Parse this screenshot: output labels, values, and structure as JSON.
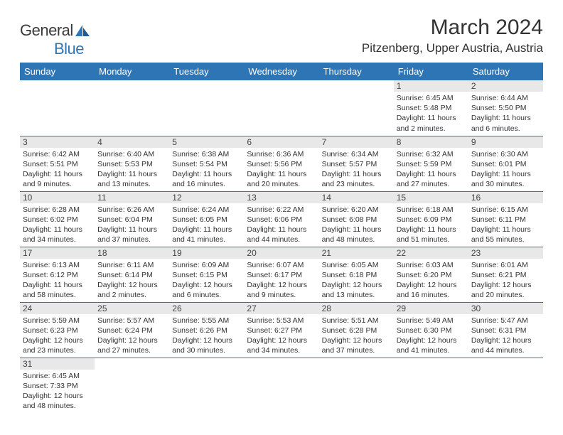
{
  "logo": {
    "text_general": "General",
    "text_blue": "Blue"
  },
  "header": {
    "month_title": "March 2024",
    "location": "Pitzenberg, Upper Austria, Austria"
  },
  "colors": {
    "header_bg": "#2e75b6",
    "header_text": "#ffffff",
    "daynum_bg": "#e8e8e8",
    "border": "#2e75b6",
    "text": "#333333"
  },
  "day_headers": [
    "Sunday",
    "Monday",
    "Tuesday",
    "Wednesday",
    "Thursday",
    "Friday",
    "Saturday"
  ],
  "weeks": [
    [
      {
        "day": "",
        "lines": []
      },
      {
        "day": "",
        "lines": []
      },
      {
        "day": "",
        "lines": []
      },
      {
        "day": "",
        "lines": []
      },
      {
        "day": "",
        "lines": []
      },
      {
        "day": "1",
        "lines": [
          "Sunrise: 6:45 AM",
          "Sunset: 5:48 PM",
          "Daylight: 11 hours and 2 minutes."
        ]
      },
      {
        "day": "2",
        "lines": [
          "Sunrise: 6:44 AM",
          "Sunset: 5:50 PM",
          "Daylight: 11 hours and 6 minutes."
        ]
      }
    ],
    [
      {
        "day": "3",
        "lines": [
          "Sunrise: 6:42 AM",
          "Sunset: 5:51 PM",
          "Daylight: 11 hours and 9 minutes."
        ]
      },
      {
        "day": "4",
        "lines": [
          "Sunrise: 6:40 AM",
          "Sunset: 5:53 PM",
          "Daylight: 11 hours and 13 minutes."
        ]
      },
      {
        "day": "5",
        "lines": [
          "Sunrise: 6:38 AM",
          "Sunset: 5:54 PM",
          "Daylight: 11 hours and 16 minutes."
        ]
      },
      {
        "day": "6",
        "lines": [
          "Sunrise: 6:36 AM",
          "Sunset: 5:56 PM",
          "Daylight: 11 hours and 20 minutes."
        ]
      },
      {
        "day": "7",
        "lines": [
          "Sunrise: 6:34 AM",
          "Sunset: 5:57 PM",
          "Daylight: 11 hours and 23 minutes."
        ]
      },
      {
        "day": "8",
        "lines": [
          "Sunrise: 6:32 AM",
          "Sunset: 5:59 PM",
          "Daylight: 11 hours and 27 minutes."
        ]
      },
      {
        "day": "9",
        "lines": [
          "Sunrise: 6:30 AM",
          "Sunset: 6:01 PM",
          "Daylight: 11 hours and 30 minutes."
        ]
      }
    ],
    [
      {
        "day": "10",
        "lines": [
          "Sunrise: 6:28 AM",
          "Sunset: 6:02 PM",
          "Daylight: 11 hours and 34 minutes."
        ]
      },
      {
        "day": "11",
        "lines": [
          "Sunrise: 6:26 AM",
          "Sunset: 6:04 PM",
          "Daylight: 11 hours and 37 minutes."
        ]
      },
      {
        "day": "12",
        "lines": [
          "Sunrise: 6:24 AM",
          "Sunset: 6:05 PM",
          "Daylight: 11 hours and 41 minutes."
        ]
      },
      {
        "day": "13",
        "lines": [
          "Sunrise: 6:22 AM",
          "Sunset: 6:06 PM",
          "Daylight: 11 hours and 44 minutes."
        ]
      },
      {
        "day": "14",
        "lines": [
          "Sunrise: 6:20 AM",
          "Sunset: 6:08 PM",
          "Daylight: 11 hours and 48 minutes."
        ]
      },
      {
        "day": "15",
        "lines": [
          "Sunrise: 6:18 AM",
          "Sunset: 6:09 PM",
          "Daylight: 11 hours and 51 minutes."
        ]
      },
      {
        "day": "16",
        "lines": [
          "Sunrise: 6:15 AM",
          "Sunset: 6:11 PM",
          "Daylight: 11 hours and 55 minutes."
        ]
      }
    ],
    [
      {
        "day": "17",
        "lines": [
          "Sunrise: 6:13 AM",
          "Sunset: 6:12 PM",
          "Daylight: 11 hours and 58 minutes."
        ]
      },
      {
        "day": "18",
        "lines": [
          "Sunrise: 6:11 AM",
          "Sunset: 6:14 PM",
          "Daylight: 12 hours and 2 minutes."
        ]
      },
      {
        "day": "19",
        "lines": [
          "Sunrise: 6:09 AM",
          "Sunset: 6:15 PM",
          "Daylight: 12 hours and 6 minutes."
        ]
      },
      {
        "day": "20",
        "lines": [
          "Sunrise: 6:07 AM",
          "Sunset: 6:17 PM",
          "Daylight: 12 hours and 9 minutes."
        ]
      },
      {
        "day": "21",
        "lines": [
          "Sunrise: 6:05 AM",
          "Sunset: 6:18 PM",
          "Daylight: 12 hours and 13 minutes."
        ]
      },
      {
        "day": "22",
        "lines": [
          "Sunrise: 6:03 AM",
          "Sunset: 6:20 PM",
          "Daylight: 12 hours and 16 minutes."
        ]
      },
      {
        "day": "23",
        "lines": [
          "Sunrise: 6:01 AM",
          "Sunset: 6:21 PM",
          "Daylight: 12 hours and 20 minutes."
        ]
      }
    ],
    [
      {
        "day": "24",
        "lines": [
          "Sunrise: 5:59 AM",
          "Sunset: 6:23 PM",
          "Daylight: 12 hours and 23 minutes."
        ]
      },
      {
        "day": "25",
        "lines": [
          "Sunrise: 5:57 AM",
          "Sunset: 6:24 PM",
          "Daylight: 12 hours and 27 minutes."
        ]
      },
      {
        "day": "26",
        "lines": [
          "Sunrise: 5:55 AM",
          "Sunset: 6:26 PM",
          "Daylight: 12 hours and 30 minutes."
        ]
      },
      {
        "day": "27",
        "lines": [
          "Sunrise: 5:53 AM",
          "Sunset: 6:27 PM",
          "Daylight: 12 hours and 34 minutes."
        ]
      },
      {
        "day": "28",
        "lines": [
          "Sunrise: 5:51 AM",
          "Sunset: 6:28 PM",
          "Daylight: 12 hours and 37 minutes."
        ]
      },
      {
        "day": "29",
        "lines": [
          "Sunrise: 5:49 AM",
          "Sunset: 6:30 PM",
          "Daylight: 12 hours and 41 minutes."
        ]
      },
      {
        "day": "30",
        "lines": [
          "Sunrise: 5:47 AM",
          "Sunset: 6:31 PM",
          "Daylight: 12 hours and 44 minutes."
        ]
      }
    ],
    [
      {
        "day": "31",
        "lines": [
          "Sunrise: 6:45 AM",
          "Sunset: 7:33 PM",
          "Daylight: 12 hours and 48 minutes."
        ]
      },
      {
        "day": "",
        "lines": []
      },
      {
        "day": "",
        "lines": []
      },
      {
        "day": "",
        "lines": []
      },
      {
        "day": "",
        "lines": []
      },
      {
        "day": "",
        "lines": []
      },
      {
        "day": "",
        "lines": []
      }
    ]
  ]
}
